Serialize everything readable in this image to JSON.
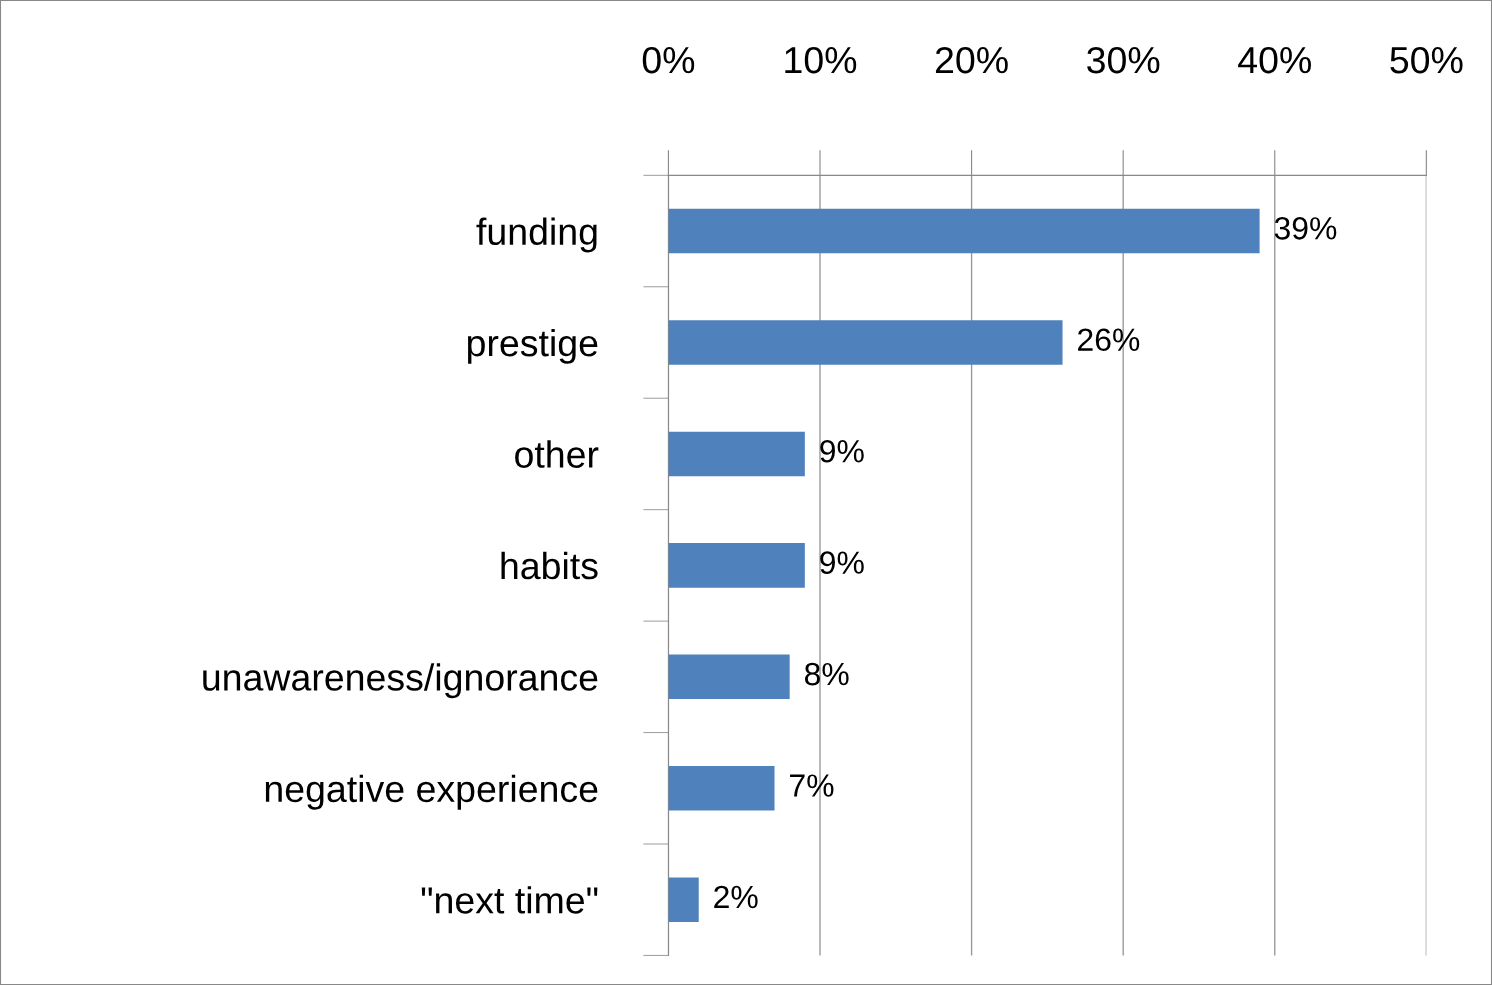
{
  "chart_data": {
    "type": "bar",
    "orientation": "horizontal",
    "categories": [
      "funding",
      "prestige",
      "other",
      "habits",
      "unawareness/ignorance",
      "negative experience",
      "\"next time\""
    ],
    "values": [
      39,
      26,
      9,
      9,
      8,
      7,
      2
    ],
    "color": "#4f81bd",
    "value_labels": [
      "39%",
      "26%",
      "9%",
      "9%",
      "8%",
      "7%",
      "2%"
    ],
    "xlim": [
      0,
      50
    ],
    "xticks": [
      {
        "value": 0,
        "label": "0%"
      },
      {
        "value": 10,
        "label": "10%"
      },
      {
        "value": 20,
        "label": "20%"
      },
      {
        "value": 30,
        "label": "30%"
      },
      {
        "value": 40,
        "label": "40%"
      },
      {
        "value": 50,
        "label": "50%"
      }
    ],
    "grid": "x",
    "legend": false
  }
}
